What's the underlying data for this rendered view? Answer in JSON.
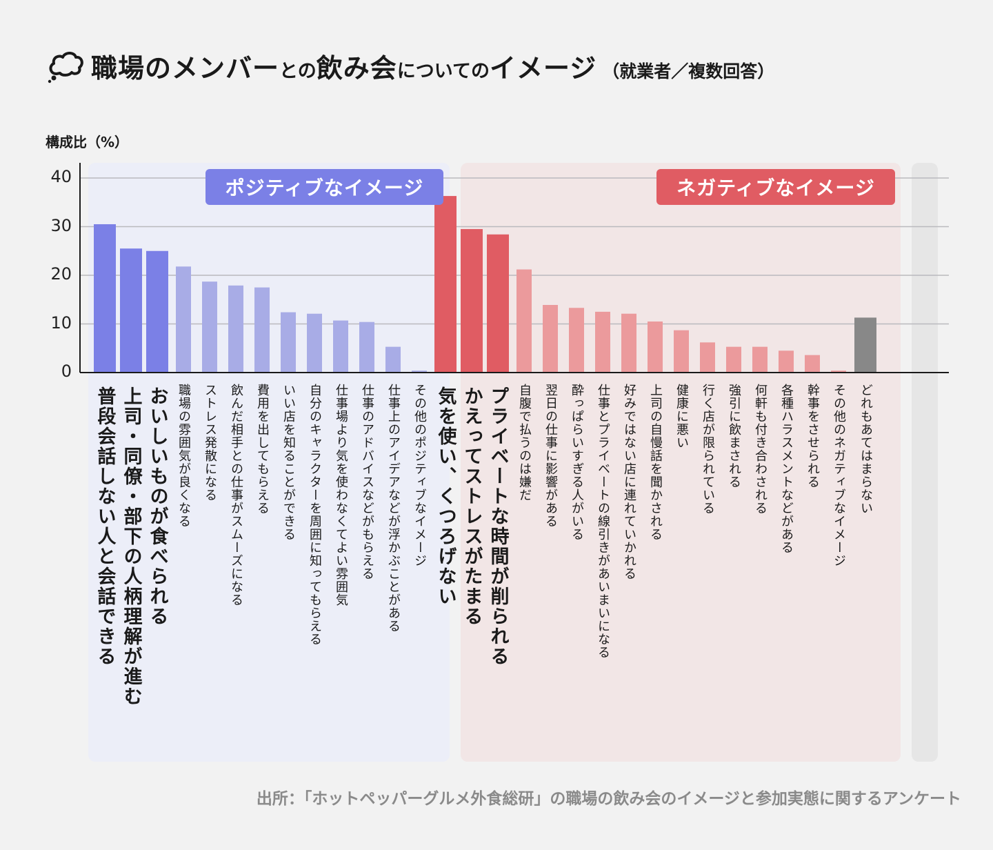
{
  "title": {
    "part1": "職場のメンバー",
    "part2": "との",
    "part3": "飲み会",
    "part4": "についての",
    "part5": "イメージ",
    "note": "（就業者／複数回答）"
  },
  "chart_data": {
    "type": "bar",
    "ylabel": "構成比（%）",
    "ylim": [
      0,
      40
    ],
    "yticks": [
      0,
      10,
      20,
      30,
      40
    ],
    "groups": [
      {
        "name": "ポジティブなイメージ",
        "color": "#7b80e6",
        "bg": "#eceef8"
      },
      {
        "name": "ネガティブなイメージ",
        "color": "#e05c63",
        "bg": "#f2e6e6"
      },
      {
        "name": "",
        "color": "#888888",
        "bg": "#e6e6e6"
      }
    ],
    "bars": [
      {
        "label": "普段会話しない人と会話できる",
        "value": 30.5,
        "group": 0,
        "highlight": true
      },
      {
        "label": "上司・同僚・部下の人柄理解が進む",
        "value": 25.5,
        "group": 0,
        "highlight": true
      },
      {
        "label": "おいしいものが食べられる",
        "value": 25.0,
        "group": 0,
        "highlight": true
      },
      {
        "label": "職場の雰囲気が良くなる",
        "value": 21.8,
        "group": 0,
        "highlight": false
      },
      {
        "label": "ストレス発散になる",
        "value": 18.7,
        "group": 0,
        "highlight": false
      },
      {
        "label": "飲んだ相手との仕事がスムーズになる",
        "value": 17.9,
        "group": 0,
        "highlight": false
      },
      {
        "label": "費用を出してもらえる",
        "value": 17.5,
        "group": 0,
        "highlight": false
      },
      {
        "label": "いい店を知ることができる",
        "value": 12.4,
        "group": 0,
        "highlight": false
      },
      {
        "label": "自分のキャラクターを周囲に知ってもらえる",
        "value": 12.1,
        "group": 0,
        "highlight": false
      },
      {
        "label": "仕事場より気を使わなくてよい雰囲気",
        "value": 10.7,
        "group": 0,
        "highlight": false
      },
      {
        "label": "仕事のアドバイスなどがもらえる",
        "value": 10.4,
        "group": 0,
        "highlight": false
      },
      {
        "label": "仕事上のアイデアなどが浮かぶことがある",
        "value": 5.3,
        "group": 0,
        "highlight": false
      },
      {
        "label": "その他のポジティブなイメージ",
        "value": 0.4,
        "group": 0,
        "highlight": false
      },
      {
        "label": "気を使い、くつろげない",
        "value": 36.3,
        "group": 1,
        "highlight": true
      },
      {
        "label": "かえってストレスがたまる",
        "value": 29.5,
        "group": 1,
        "highlight": true
      },
      {
        "label": "プライベートな時間が削られる",
        "value": 28.4,
        "group": 1,
        "highlight": true
      },
      {
        "label": "自腹で払うのは嫌だ",
        "value": 21.2,
        "group": 1,
        "highlight": false
      },
      {
        "label": "翌日の仕事に影響がある",
        "value": 13.9,
        "group": 1,
        "highlight": false
      },
      {
        "label": "酔っぱらいすぎる人がいる",
        "value": 13.3,
        "group": 1,
        "highlight": false
      },
      {
        "label": "仕事とプライベートの線引きがあいまいになる",
        "value": 12.5,
        "group": 1,
        "highlight": false
      },
      {
        "label": "好みではない店に連れていかれる",
        "value": 12.1,
        "group": 1,
        "highlight": false
      },
      {
        "label": "上司の自慢話を聞かされる",
        "value": 10.5,
        "group": 1,
        "highlight": false
      },
      {
        "label": "健康に悪い",
        "value": 8.7,
        "group": 1,
        "highlight": false
      },
      {
        "label": "行く店が限られている",
        "value": 6.2,
        "group": 1,
        "highlight": false
      },
      {
        "label": "強引に飲まされる",
        "value": 5.3,
        "group": 1,
        "highlight": false
      },
      {
        "label": "何軒も付き合わされる",
        "value": 5.3,
        "group": 1,
        "highlight": false
      },
      {
        "label": "各種ハラスメントなどがある",
        "value": 4.5,
        "group": 1,
        "highlight": false
      },
      {
        "label": "幹事をさせられる",
        "value": 3.6,
        "group": 1,
        "highlight": false
      },
      {
        "label": "その他のネガティブなイメージ",
        "value": 0.4,
        "group": 1,
        "highlight": false
      },
      {
        "label": "どれもあてはまらない",
        "value": 11.3,
        "group": 2,
        "highlight": true
      }
    ]
  },
  "colors": {
    "positive_dark": "#7b80e6",
    "positive_light": "#a8ace6",
    "negative_dark": "#e05c63",
    "negative_light": "#eb9a9c",
    "none": "#888888"
  },
  "source": "出所：「ホットペッパーグルメ外食総研」の職場の飲み会のイメージと参加実態に関するアンケート"
}
